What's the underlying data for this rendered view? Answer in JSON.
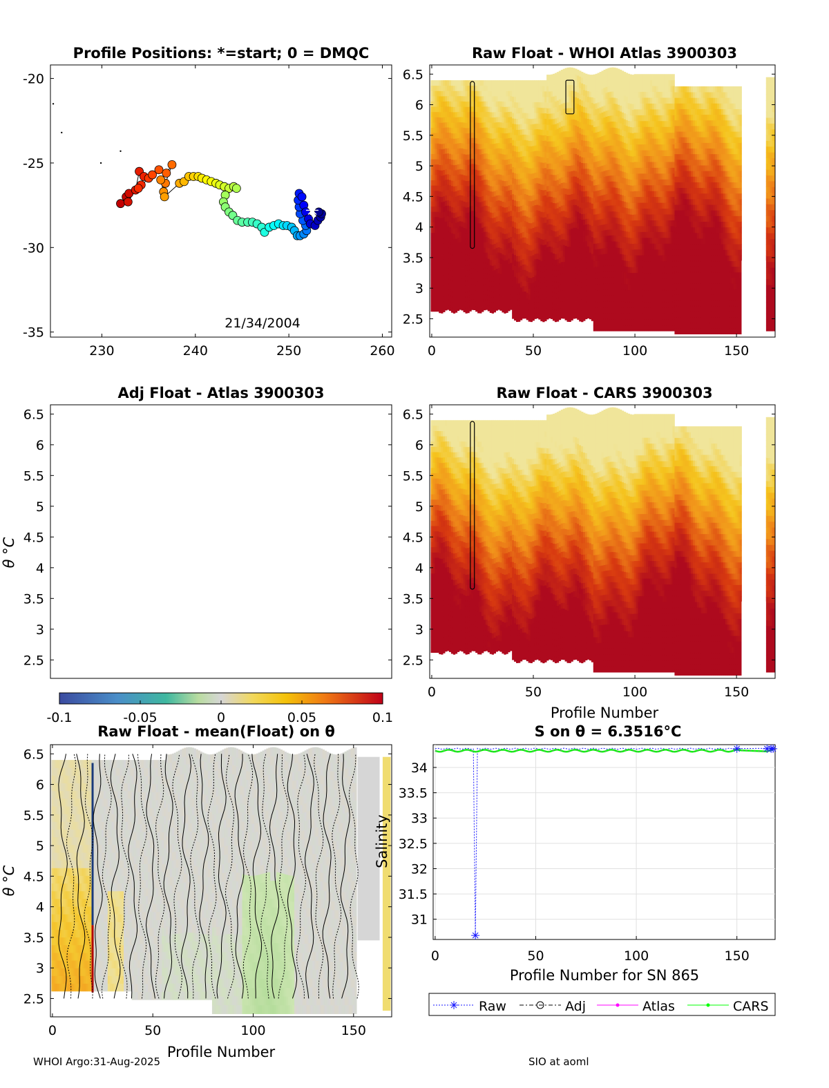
{
  "footer": {
    "left": "WHOI Argo:31-Aug-2025",
    "right": "SIO at aoml"
  },
  "colors": {
    "field_low": "#b40426",
    "field_mid": "#f08c1a",
    "field_high": "#f4e27a",
    "anomaly_neutral": "#d6d6d6",
    "axis": "#000000",
    "grid": "#e0e0e0",
    "raw": "#1414ff",
    "adj": "#000000",
    "atlas": "#ff00ff",
    "cars": "#00ff00"
  },
  "chart_data": [
    {
      "id": "positions",
      "type": "scatter",
      "title": "Profile Positions: *=start; 0 = DMQC",
      "annotation": "21/34/2004",
      "xlim": [
        224.5,
        261
      ],
      "ylim": [
        -35.3,
        -19.2
      ],
      "xticks": [
        230,
        240,
        250,
        260
      ],
      "yticks": [
        -20,
        -25,
        -30,
        -35
      ],
      "coast_dots": [
        [
          224.8,
          -21.5
        ],
        [
          225.7,
          -23.2
        ],
        [
          229.9,
          -25.0
        ],
        [
          232.0,
          -24.3
        ]
      ],
      "track": [
        [
          232.0,
          -27.4
        ],
        [
          232.6,
          -27.0
        ],
        [
          232.9,
          -26.8
        ],
        [
          232.8,
          -27.3
        ],
        [
          233.6,
          -26.6
        ],
        [
          234.0,
          -25.5
        ],
        [
          234.5,
          -25.8
        ],
        [
          234.2,
          -26.3
        ],
        [
          233.9,
          -26.5
        ],
        [
          235.0,
          -25.9
        ],
        [
          235.4,
          -25.7
        ],
        [
          236.1,
          -25.4
        ],
        [
          236.9,
          -25.6
        ],
        [
          237.5,
          -25.1
        ],
        [
          236.8,
          -26.2
        ],
        [
          236.3,
          -26.0
        ],
        [
          236.6,
          -26.7
        ],
        [
          236.7,
          -27.0
        ],
        [
          238.3,
          -26.2
        ],
        [
          238.8,
          -26.1
        ],
        [
          239.3,
          -25.8
        ],
        [
          239.8,
          -25.8
        ],
        [
          240.3,
          -25.8
        ],
        [
          240.7,
          -25.9
        ],
        [
          241.2,
          -26.0
        ],
        [
          241.7,
          -26.1
        ],
        [
          242.2,
          -26.2
        ],
        [
          242.6,
          -26.3
        ],
        [
          243.1,
          -26.4
        ],
        [
          243.6,
          -26.5
        ],
        [
          244.1,
          -26.4
        ],
        [
          244.4,
          -26.5
        ],
        [
          243.2,
          -26.9
        ],
        [
          243.0,
          -27.3
        ],
        [
          243.2,
          -27.6
        ],
        [
          243.6,
          -27.9
        ],
        [
          244.0,
          -28.1
        ],
        [
          244.5,
          -28.4
        ],
        [
          245.0,
          -28.5
        ],
        [
          245.6,
          -28.5
        ],
        [
          246.1,
          -28.5
        ],
        [
          246.6,
          -28.6
        ],
        [
          247.1,
          -28.8
        ],
        [
          247.4,
          -29.1
        ],
        [
          247.9,
          -28.8
        ],
        [
          248.4,
          -28.7
        ],
        [
          248.9,
          -28.6
        ],
        [
          249.4,
          -28.7
        ],
        [
          249.8,
          -28.7
        ],
        [
          250.3,
          -28.8
        ],
        [
          250.6,
          -29.0
        ],
        [
          250.9,
          -29.3
        ],
        [
          251.2,
          -29.3
        ],
        [
          251.6,
          -29.2
        ],
        [
          251.9,
          -29.0
        ],
        [
          251.8,
          -28.7
        ],
        [
          251.5,
          -28.4
        ],
        [
          251.2,
          -28.0
        ],
        [
          251.1,
          -27.6
        ],
        [
          251.0,
          -27.2
        ],
        [
          251.1,
          -26.8
        ],
        [
          251.4,
          -27.0
        ],
        [
          251.6,
          -27.5
        ],
        [
          251.8,
          -27.9
        ],
        [
          252.1,
          -28.3
        ],
        [
          252.3,
          -28.6
        ],
        [
          252.8,
          -28.7
        ],
        [
          253.1,
          -28.4
        ],
        [
          253.4,
          -28.2
        ],
        [
          253.5,
          -28.0
        ],
        [
          253.2,
          -27.9
        ]
      ],
      "start": [
        252.5,
        -27.8
      ]
    },
    {
      "id": "raw_atlas",
      "type": "heatmap",
      "title": "Raw Float - WHOI Atlas  3900303",
      "xlim": [
        -1,
        169
      ],
      "ylim": [
        2.2,
        6.65
      ],
      "xticks": [
        0,
        50,
        100,
        150
      ],
      "yticks": [
        2.5,
        3,
        3.5,
        4,
        4.5,
        5,
        5.5,
        6,
        6.5
      ],
      "variant": 0
    },
    {
      "id": "adj_atlas",
      "type": "heatmap",
      "title": "Adj Float - Atlas  3900303",
      "ylabel": "θ °C",
      "xlim": [
        -1,
        169
      ],
      "ylim": [
        2.2,
        6.65
      ],
      "yticks": [
        2.5,
        3,
        3.5,
        4,
        4.5,
        5,
        5.5,
        6,
        6.5
      ],
      "colorbar": {
        "ticks": [
          "-0.1",
          "-0.05",
          "0",
          "0.05",
          "0.1"
        ],
        "lim": [
          -0.1,
          0.1
        ]
      }
    },
    {
      "id": "raw_cars",
      "type": "heatmap",
      "title": "Raw Float - CARS  3900303",
      "xlabel": "Profile Number",
      "xlim": [
        -1,
        169
      ],
      "ylim": [
        2.2,
        6.65
      ],
      "xticks": [
        0,
        50,
        100,
        150
      ],
      "yticks": [
        2.5,
        3,
        3.5,
        4,
        4.5,
        5,
        5.5,
        6,
        6.5
      ],
      "variant": 1
    },
    {
      "id": "raw_mean",
      "type": "heatmap",
      "title": "Raw Float - mean(Float) on θ",
      "xlabel": "Profile Number",
      "ylabel": "θ °C",
      "side_label": "Salinity",
      "xlim": [
        -1,
        169
      ],
      "ylim": [
        2.2,
        6.65
      ],
      "xticks": [
        0,
        50,
        100,
        150
      ],
      "yticks": [
        2.5,
        3,
        3.5,
        4,
        4.5,
        5,
        5.5,
        6,
        6.5
      ]
    },
    {
      "id": "s_on_theta",
      "type": "line",
      "title": "S on θ = 6.3516°C",
      "xlabel": "Profile Number for SN 865",
      "xlim": [
        -1,
        169
      ],
      "ylim": [
        30.6,
        34.45
      ],
      "xticks": [
        0,
        50,
        100,
        150
      ],
      "yticks": [
        31,
        31.5,
        32,
        32.5,
        33,
        33.5,
        34
      ],
      "series": [
        {
          "name": "Raw",
          "base": 34.37,
          "outlier": [
            20,
            30.68
          ]
        },
        {
          "name": "Adj"
        },
        {
          "name": "Atlas",
          "base": 34.33
        },
        {
          "name": "CARS",
          "base": 34.33
        }
      ]
    }
  ]
}
